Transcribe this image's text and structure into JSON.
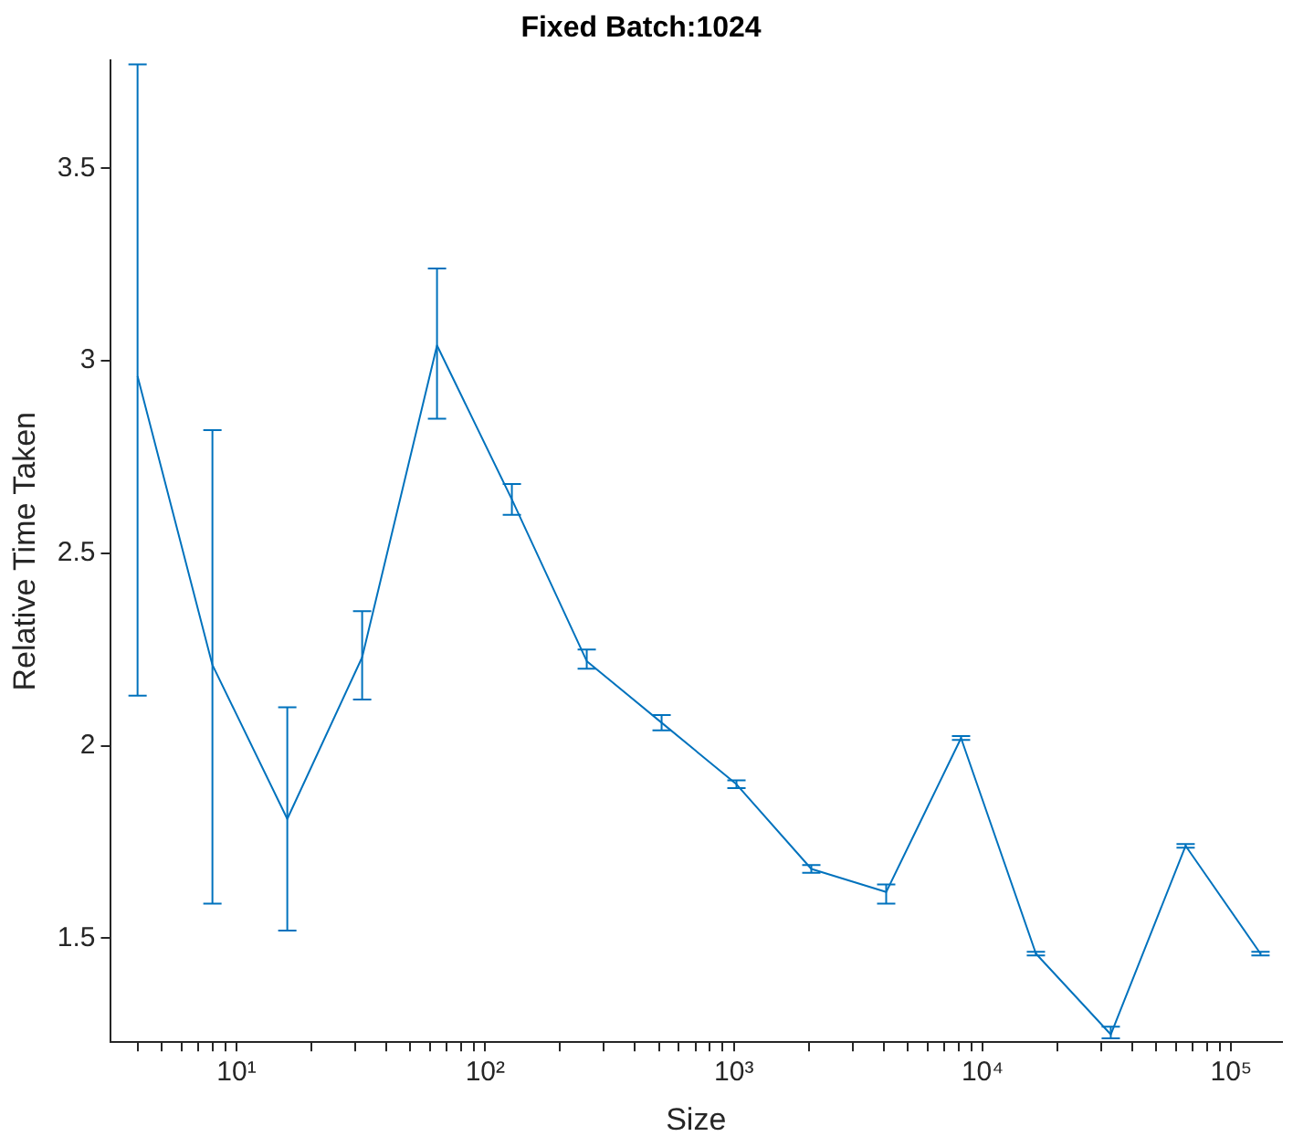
{
  "chart_data": {
    "type": "line",
    "title": "Fixed Batch:1024",
    "xlabel": "Size",
    "ylabel": "Relative Time Taken",
    "x": [
      4,
      8,
      16,
      32,
      64,
      128,
      256,
      512,
      1024,
      2048,
      4096,
      8192,
      16384,
      32768,
      65536,
      131072
    ],
    "series": [
      {
        "color": "#0072bd",
        "values": [
          2.96,
          2.21,
          1.81,
          2.23,
          3.04,
          2.64,
          2.22,
          2.06,
          1.9,
          1.68,
          1.62,
          2.02,
          1.46,
          1.25,
          1.74,
          1.46
        ],
        "errors": [
          [
            2.13,
            3.77
          ],
          [
            1.59,
            2.82
          ],
          [
            1.52,
            2.1
          ],
          [
            2.12,
            2.35
          ],
          [
            2.85,
            3.24
          ],
          [
            2.6,
            2.68
          ],
          [
            2.2,
            2.25
          ],
          [
            2.04,
            2.08
          ],
          [
            1.89,
            1.91
          ],
          [
            1.67,
            1.69
          ],
          [
            1.59,
            1.64
          ],
          [
            2.015,
            2.025
          ],
          [
            1.455,
            1.465
          ],
          [
            1.24,
            1.27
          ],
          [
            1.735,
            1.745
          ],
          [
            1.455,
            1.465
          ]
        ]
      }
    ],
    "log": "x",
    "xlim": [
      3.1,
      160000
    ],
    "ylim": [
      1.23,
      3.78
    ],
    "xticks": [
      {
        "value": 4,
        "label": null
      },
      {
        "value": 5,
        "label": null
      },
      {
        "value": 6,
        "label": null
      },
      {
        "value": 7,
        "label": null
      },
      {
        "value": 8,
        "label": null
      },
      {
        "value": 9,
        "label": null
      },
      {
        "value": 10,
        "label": "10¹"
      },
      {
        "value": 20,
        "label": null
      },
      {
        "value": 30,
        "label": null
      },
      {
        "value": 40,
        "label": null
      },
      {
        "value": 50,
        "label": null
      },
      {
        "value": 60,
        "label": null
      },
      {
        "value": 70,
        "label": null
      },
      {
        "value": 80,
        "label": null
      },
      {
        "value": 90,
        "label": null
      },
      {
        "value": 100,
        "label": "10²"
      },
      {
        "value": 200,
        "label": null
      },
      {
        "value": 300,
        "label": null
      },
      {
        "value": 400,
        "label": null
      },
      {
        "value": 500,
        "label": null
      },
      {
        "value": 600,
        "label": null
      },
      {
        "value": 700,
        "label": null
      },
      {
        "value": 800,
        "label": null
      },
      {
        "value": 900,
        "label": null
      },
      {
        "value": 1000,
        "label": "10³"
      },
      {
        "value": 2000,
        "label": null
      },
      {
        "value": 3000,
        "label": null
      },
      {
        "value": 4000,
        "label": null
      },
      {
        "value": 5000,
        "label": null
      },
      {
        "value": 6000,
        "label": null
      },
      {
        "value": 7000,
        "label": null
      },
      {
        "value": 8000,
        "label": null
      },
      {
        "value": 9000,
        "label": null
      },
      {
        "value": 10000,
        "label": "10⁴"
      },
      {
        "value": 20000,
        "label": null
      },
      {
        "value": 30000,
        "label": null
      },
      {
        "value": 40000,
        "label": null
      },
      {
        "value": 50000,
        "label": null
      },
      {
        "value": 60000,
        "label": null
      },
      {
        "value": 70000,
        "label": null
      },
      {
        "value": 80000,
        "label": null
      },
      {
        "value": 90000,
        "label": null
      },
      {
        "value": 100000,
        "label": "10⁵"
      }
    ],
    "yticks": [
      1.5,
      2,
      2.5,
      3,
      3.5
    ],
    "grid": false,
    "legend": false,
    "marker": "none",
    "line_style": "solid"
  }
}
